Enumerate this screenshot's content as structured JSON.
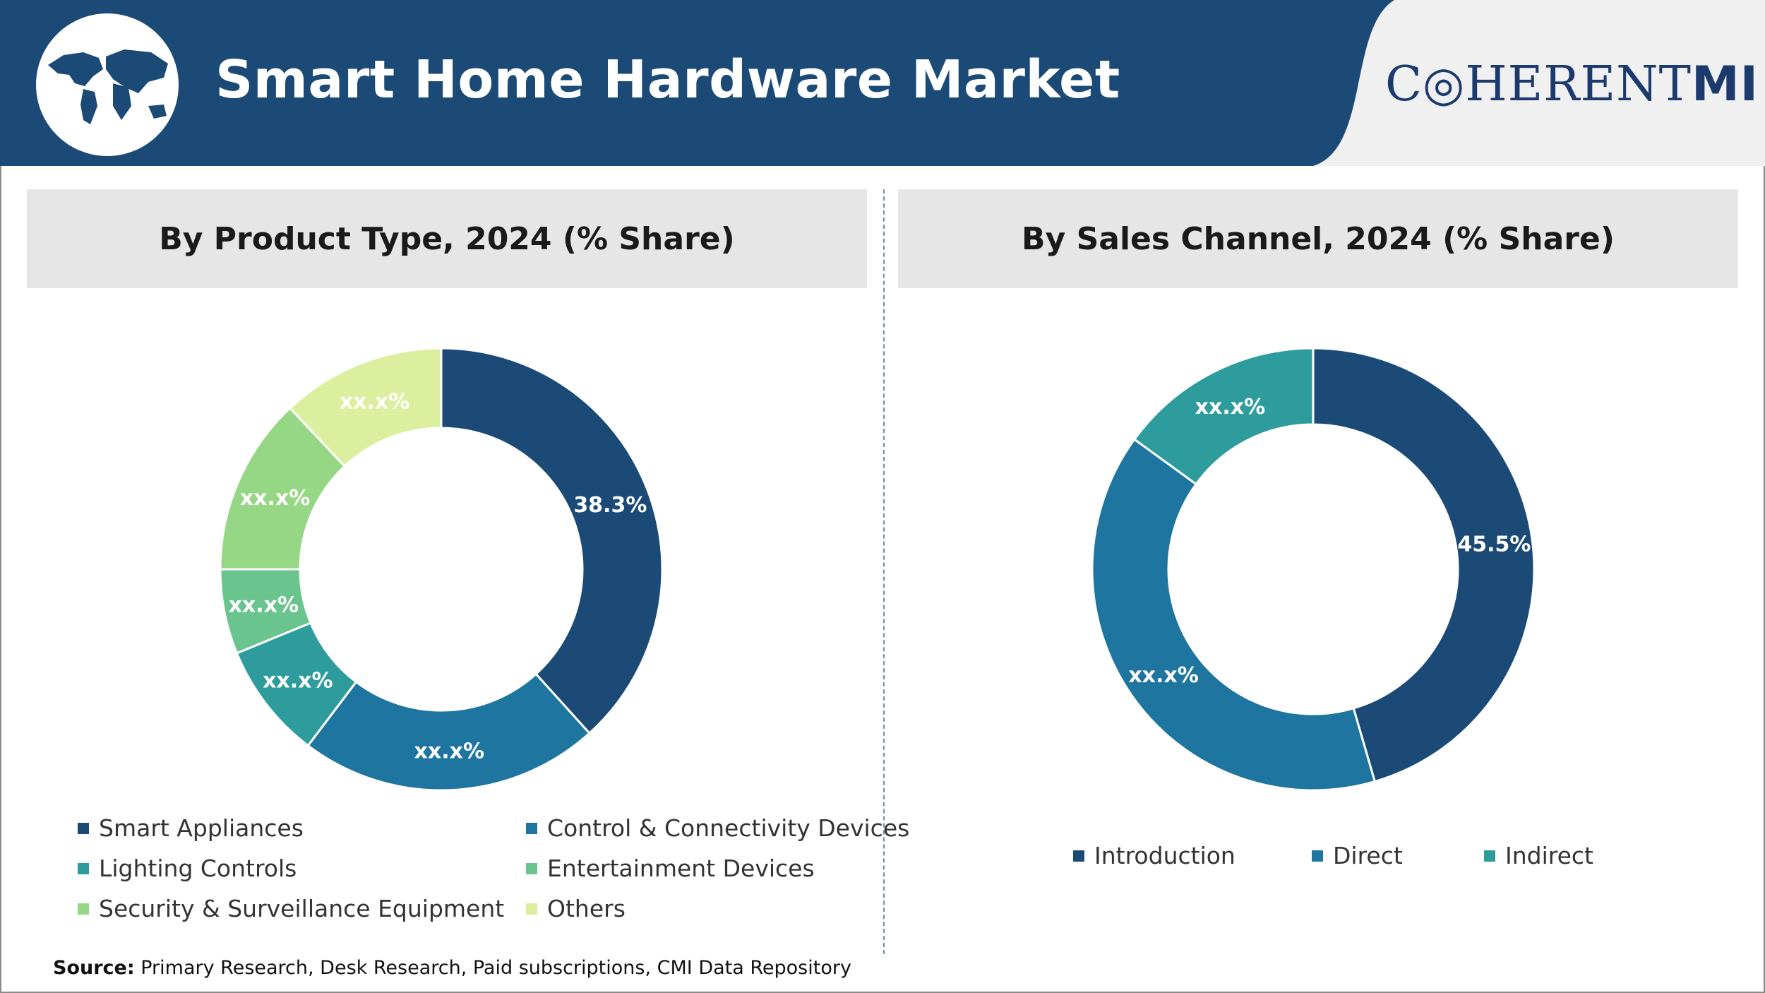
{
  "header": {
    "title": "Smart Home Hardware Market",
    "logo_text": "C◎HERENT",
    "logo_suffix": "MI",
    "colors": {
      "banner": "#1b4a76",
      "logo_bg": "#f0f0f0"
    }
  },
  "chart_data": [
    {
      "type": "pie",
      "title": "By Product Type, 2024 (% Share)",
      "donut": true,
      "slices": [
        {
          "label": "Smart Appliances",
          "value": 38.3,
          "display": "38.3%",
          "color": "#1b4a76"
        },
        {
          "label": "Control & Connectivity Devices",
          "value": 22.0,
          "display": "xx.x%",
          "color": "#1e75a0"
        },
        {
          "label": "Lighting Controls",
          "value": 8.5,
          "display": "xx.x%",
          "color": "#2e9c9c"
        },
        {
          "label": "Entertainment Devices",
          "value": 6.2,
          "display": "xx.x%",
          "color": "#6ac48e"
        },
        {
          "label": "Security & Surveillance Equipment",
          "value": 13.0,
          "display": "xx.x%",
          "color": "#96d786"
        },
        {
          "label": "Others",
          "value": 12.0,
          "display": "xx.x%",
          "color": "#dcef9e"
        }
      ]
    },
    {
      "type": "pie",
      "title": "By Sales Channel, 2024 (% Share)",
      "donut": true,
      "slices": [
        {
          "label": "Introduction",
          "value": 45.5,
          "display": "45.5%",
          "color": "#1b4a76"
        },
        {
          "label": "Direct",
          "value": 39.5,
          "display": "xx.x%",
          "color": "#1e75a0"
        },
        {
          "label": "Indirect",
          "value": 15.0,
          "display": "xx.x%",
          "color": "#2e9c9c"
        }
      ]
    }
  ],
  "source": {
    "label": "Source:",
    "text": " Primary Research, Desk Research, Paid subscriptions, CMI Data Repository"
  }
}
